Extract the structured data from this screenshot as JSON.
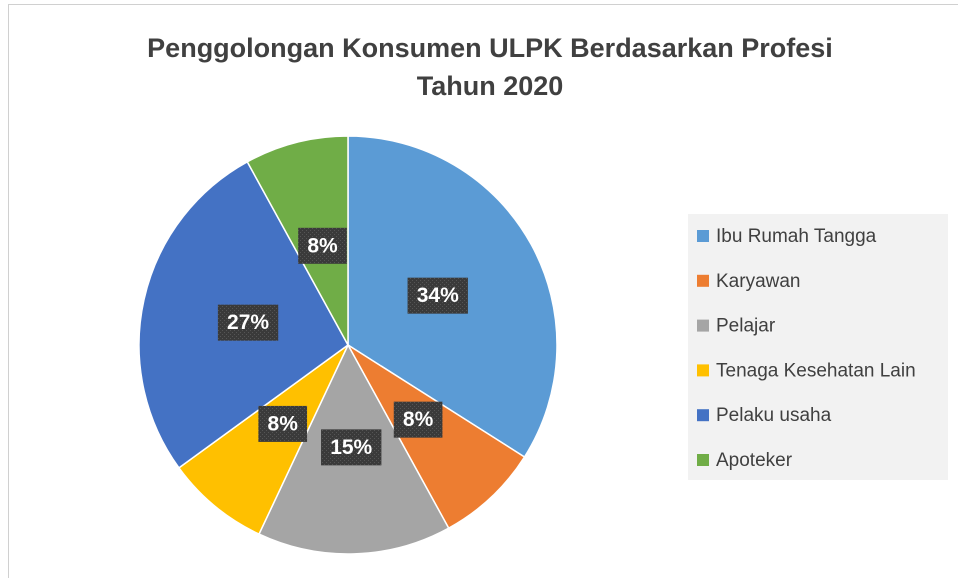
{
  "chart_data": {
    "type": "pie",
    "title": [
      "Penggolongan Konsumen ULPK Berdasarkan Profesi",
      "Tahun 2020"
    ],
    "categories": [
      "Ibu Rumah Tangga",
      "Karyawan",
      "Pelajar",
      "Tenaga Kesehatan Lain",
      "Pelaku usaha",
      "Apoteker"
    ],
    "values": [
      34,
      8,
      15,
      8,
      27,
      8
    ],
    "value_labels": [
      "34%",
      "8%",
      "15%",
      "8%",
      "27%",
      "8%"
    ],
    "colors": [
      "#5b9bd5",
      "#ed7d31",
      "#a5a5a5",
      "#ffc000",
      "#4472c4",
      "#70ad47"
    ],
    "legend": "right"
  }
}
